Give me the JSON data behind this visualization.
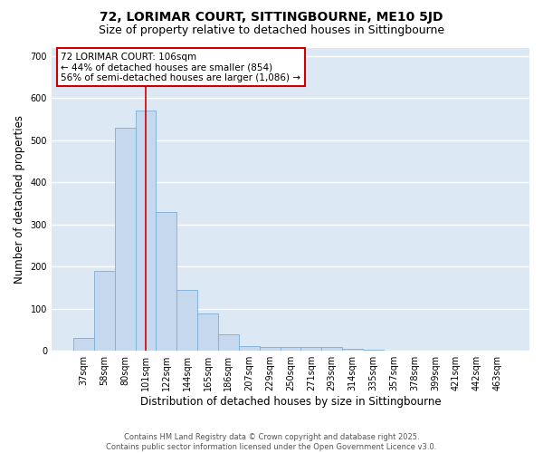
{
  "title": "72, LORIMAR COURT, SITTINGBOURNE, ME10 5JD",
  "subtitle": "Size of property relative to detached houses in Sittingbourne",
  "xlabel": "Distribution of detached houses by size in Sittingbourne",
  "ylabel": "Number of detached properties",
  "bar_color": "#c5d8ee",
  "bar_edge_color": "#7aaed6",
  "background_color": "#dde8f5",
  "grid_color": "white",
  "categories": [
    "37sqm",
    "58sqm",
    "80sqm",
    "101sqm",
    "122sqm",
    "144sqm",
    "165sqm",
    "186sqm",
    "207sqm",
    "229sqm",
    "250sqm",
    "271sqm",
    "293sqm",
    "314sqm",
    "335sqm",
    "357sqm",
    "378sqm",
    "399sqm",
    "421sqm",
    "442sqm",
    "463sqm"
  ],
  "values": [
    30,
    190,
    530,
    570,
    330,
    145,
    88,
    40,
    12,
    10,
    8,
    10,
    8,
    5,
    2,
    1,
    0,
    0,
    0,
    0,
    0
  ],
  "red_line_index": 3,
  "red_line_color": "#cc0000",
  "annotation_text": "72 LORIMAR COURT: 106sqm\n← 44% of detached houses are smaller (854)\n56% of semi-detached houses are larger (1,086) →",
  "annotation_box_color": "white",
  "annotation_edge_color": "#cc0000",
  "ylim": [
    0,
    720
  ],
  "yticks": [
    0,
    100,
    200,
    300,
    400,
    500,
    600,
    700
  ],
  "footnote": "Contains HM Land Registry data © Crown copyright and database right 2025.\nContains public sector information licensed under the Open Government Licence v3.0.",
  "title_fontsize": 10,
  "subtitle_fontsize": 9,
  "axis_label_fontsize": 8.5,
  "tick_fontsize": 7,
  "annotation_fontsize": 7.5,
  "footnote_fontsize": 6
}
